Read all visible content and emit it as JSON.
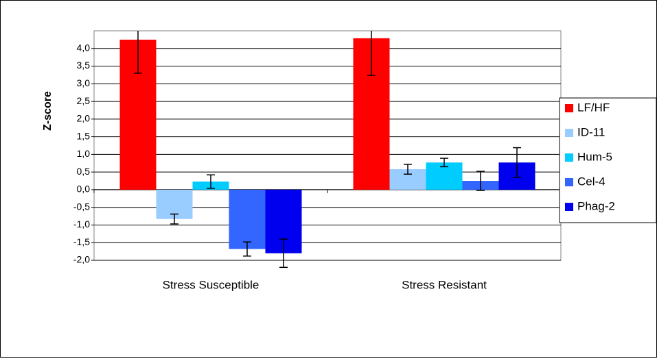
{
  "chart_data": {
    "type": "bar",
    "y_label": "Z-score",
    "categories": [
      "Stress Susceptible",
      "Stress Resistant"
    ],
    "series": [
      {
        "name": "LF/HF",
        "color": "#ff0000",
        "values": [
          4.25,
          4.29
        ],
        "errors": [
          0.95,
          1.05
        ]
      },
      {
        "name": "ID-11",
        "color": "#99ccff",
        "values": [
          -0.83,
          0.58
        ],
        "errors": [
          0.14,
          0.14
        ]
      },
      {
        "name": "Hum-5",
        "color": "#00ccff",
        "values": [
          0.23,
          0.77
        ],
        "errors": [
          0.19,
          0.12
        ]
      },
      {
        "name": "Cel-4",
        "color": "#3366ff",
        "values": [
          -1.68,
          0.25
        ],
        "errors": [
          0.2,
          0.27
        ]
      },
      {
        "name": "Phag-2",
        "color": "#0000ee",
        "values": [
          -1.8,
          0.77
        ],
        "errors": [
          0.4,
          0.42
        ]
      }
    ],
    "ylim": [
      -2,
      4.5
    ],
    "yticks": [
      {
        "value": -2,
        "label": "-2,0"
      },
      {
        "value": -1.5,
        "label": "-1,5"
      },
      {
        "value": -1,
        "label": "-1,0"
      },
      {
        "value": -0.5,
        "label": "-0,5"
      },
      {
        "value": 0,
        "label": "0,0"
      },
      {
        "value": 0.5,
        "label": "0,5"
      },
      {
        "value": 1,
        "label": "1,0"
      },
      {
        "value": 1.5,
        "label": "1,5"
      },
      {
        "value": 2,
        "label": "2,0"
      },
      {
        "value": 2.5,
        "label": "2,5"
      },
      {
        "value": 3,
        "label": "3,0"
      },
      {
        "value": 3.5,
        "label": "3,5"
      },
      {
        "value": 4,
        "label": "4,0"
      }
    ],
    "grid": true,
    "legend": "right"
  }
}
